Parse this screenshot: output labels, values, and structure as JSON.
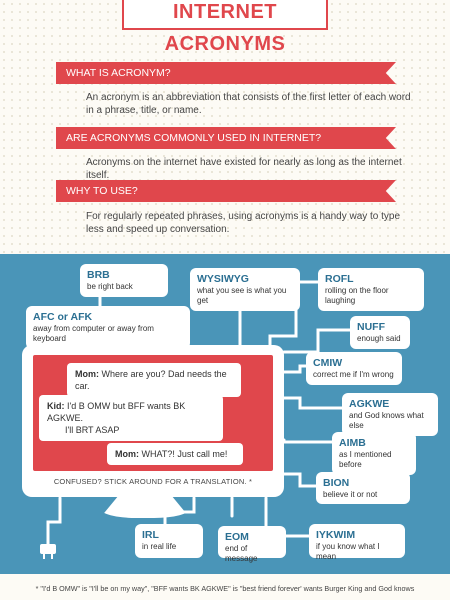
{
  "header": {
    "title": "INTERNET ACRONYMS"
  },
  "faq": [
    {
      "question": "WHAT IS ACRONYM?",
      "answer": "An acronym is an abbreviation that consists of the first letter of each word in a phrase, title, or name."
    },
    {
      "question": "ARE ACRONYMS COMMONLY USED IN INTERNET?",
      "answer": "Acronyms on the internet have existed for nearly as long as the internet itself."
    },
    {
      "question": "WHY TO USE?",
      "answer": "For regularly repeated phrases, using acronyms is a handy way to type less and speed up conversation."
    }
  ],
  "acronyms": {
    "brb": {
      "term": "BRB",
      "meaning": "be right back"
    },
    "wysiwyg": {
      "term": "WYSIWYG",
      "meaning": "what you see is what you get"
    },
    "rofl": {
      "term": "ROFL",
      "meaning": "rolling on the floor laughing"
    },
    "afk": {
      "term": "AFC or AFK",
      "meaning": "away from computer or away from keyboard"
    },
    "nuff": {
      "term": "NUFF",
      "meaning": "enough said"
    },
    "cmiw": {
      "term": "CMIW",
      "meaning": "correct me if I'm wrong"
    },
    "agkwe": {
      "term": "AGKWE",
      "meaning": "and God knows what else"
    },
    "aimb": {
      "term": "AIMB",
      "meaning": "as I mentioned before"
    },
    "bion": {
      "term": "BION",
      "meaning": "believe it or not"
    },
    "irl": {
      "term": "IRL",
      "meaning": "in real life"
    },
    "eom": {
      "term": "EOM",
      "meaning": "end of message"
    },
    "iykwim": {
      "term": "IYKWIM",
      "meaning": "if you know what I mean"
    }
  },
  "chat": {
    "mom1_speaker": "Mom:",
    "mom1_text": "Where are you? Dad needs the car.",
    "kid_speaker": "Kid:",
    "kid_text_line1": "I'd B OMW but BFF wants BK AGKWE.",
    "kid_text_line2": "I'll BRT ASAP",
    "mom2_speaker": "Mom:",
    "mom2_text": "WHAT?!  Just call me!",
    "caption": "CONFUSED? STICK AROUND FOR A TRANSLATION. *"
  },
  "footnote": "* \"I'd B OMW\" is \"I'll be on my way\", \"BFF wants BK AGKWE\" is \"best friend forever' wants Burger King and God knows",
  "colors": {
    "accent": "#e0474c",
    "blue": "#4a95b8",
    "term": "#2b6f92"
  }
}
